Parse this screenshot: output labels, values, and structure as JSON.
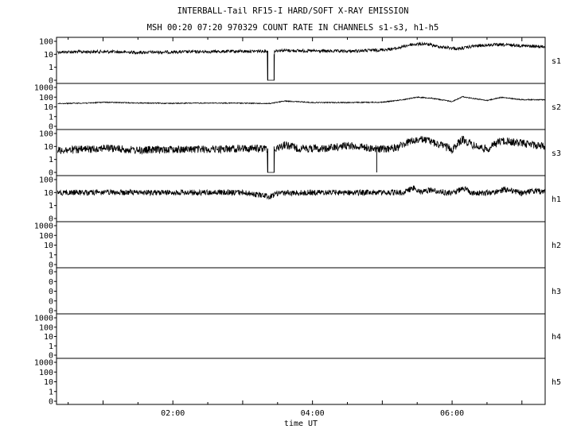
{
  "chart_data": {
    "type": "line",
    "title": "INTERBALL-Tail RF15-I HARD/SOFT X-RAY EMISSION",
    "subtitle": "MSH 00:20 07:20 970329  COUNT RATE IN CHANNELS s1-s3, h1-h5",
    "xlabel": "time UT",
    "xlim_hours": [
      0.333,
      7.333
    ],
    "x_ticks": [
      {
        "value": 2,
        "label": "02:00"
      },
      {
        "value": 4,
        "label": "04:00"
      },
      {
        "value": 6,
        "label": "06:00"
      }
    ],
    "panels": [
      {
        "name": "s1",
        "y_ticks": [
          "100",
          "10",
          "1",
          "0"
        ],
        "series": {
          "x": [
            0.35,
            1.0,
            1.5,
            2.0,
            2.5,
            3.0,
            3.35,
            3.36,
            3.45,
            3.46,
            3.5,
            3.8,
            4.0,
            4.5,
            5.0,
            5.2,
            5.4,
            5.6,
            5.8,
            6.0,
            6.1,
            6.3,
            6.6,
            6.9,
            7.1,
            7.33
          ],
          "y": [
            15,
            16,
            14,
            15,
            16,
            17,
            18,
            0,
            0,
            18,
            20,
            19,
            18,
            17,
            22,
            28,
            55,
            65,
            40,
            30,
            26,
            42,
            55,
            50,
            42,
            38
          ],
          "noise": 0.12,
          "gaps": [
            [
              3.355,
              3.365
            ],
            [
              3.445,
              3.455
            ]
          ]
        }
      },
      {
        "name": "s2",
        "y_ticks": [
          "1000",
          "100",
          "10",
          "1",
          "0"
        ],
        "series": {
          "x": [
            0.35,
            0.8,
            1.0,
            1.5,
            2.0,
            2.5,
            3.0,
            3.4,
            3.6,
            4.0,
            4.5,
            5.0,
            5.3,
            5.5,
            5.7,
            6.0,
            6.15,
            6.3,
            6.5,
            6.7,
            7.0,
            7.33
          ],
          "y": [
            22,
            25,
            30,
            25,
            23,
            25,
            24,
            22,
            40,
            28,
            28,
            30,
            55,
            100,
            80,
            35,
            110,
            75,
            45,
            95,
            55,
            55
          ],
          "noise": 0.05,
          "gaps": []
        }
      },
      {
        "name": "s3",
        "y_ticks": [
          "100",
          "10",
          "1",
          "0"
        ],
        "series": {
          "x": [
            0.35,
            0.8,
            1.0,
            1.5,
            2.0,
            2.5,
            3.0,
            3.35,
            3.36,
            3.45,
            3.46,
            3.6,
            3.8,
            4.2,
            4.5,
            5.0,
            5.2,
            5.4,
            5.6,
            5.8,
            6.0,
            6.15,
            6.3,
            6.5,
            6.7,
            7.0,
            7.33
          ],
          "y": [
            5,
            6,
            8,
            5,
            6,
            6,
            7,
            7,
            0,
            0,
            6,
            14,
            7,
            7,
            12,
            6,
            8,
            25,
            35,
            15,
            6,
            35,
            12,
            6,
            28,
            18,
            10
          ],
          "noise": 0.3,
          "gaps": [
            [
              3.355,
              3.365
            ],
            [
              3.445,
              3.455
            ]
          ],
          "spikes": [
            {
              "x": 4.92,
              "y": 0
            }
          ]
        }
      },
      {
        "name": "h1",
        "y_ticks": [
          "100",
          "10",
          "1",
          "0"
        ],
        "series": {
          "x": [
            0.35,
            1.0,
            2.0,
            3.0,
            3.4,
            3.5,
            4.0,
            5.0,
            5.3,
            5.45,
            5.55,
            5.7,
            6.0,
            6.15,
            6.3,
            6.6,
            6.75,
            7.0,
            7.2,
            7.33
          ],
          "y": [
            10,
            10,
            10,
            10,
            5,
            9,
            10,
            10,
            10,
            22,
            11,
            16,
            8,
            22,
            9,
            10,
            18,
            9,
            14,
            10
          ],
          "noise": 0.22,
          "gaps": []
        }
      },
      {
        "name": "h2",
        "y_ticks": [
          "1000",
          "100",
          "10",
          "1",
          "0"
        ],
        "series": null
      },
      {
        "name": "h3",
        "y_ticks": [
          "0",
          "0",
          "0",
          "0",
          "0"
        ],
        "series": null
      },
      {
        "name": "h4",
        "y_ticks": [
          "1000",
          "100",
          "10",
          "1",
          "0"
        ],
        "series": null
      },
      {
        "name": "h5",
        "y_ticks": [
          "1000",
          "100",
          "10",
          "1",
          "0"
        ],
        "series": null
      }
    ],
    "grid": false,
    "line_color": "#000000"
  }
}
